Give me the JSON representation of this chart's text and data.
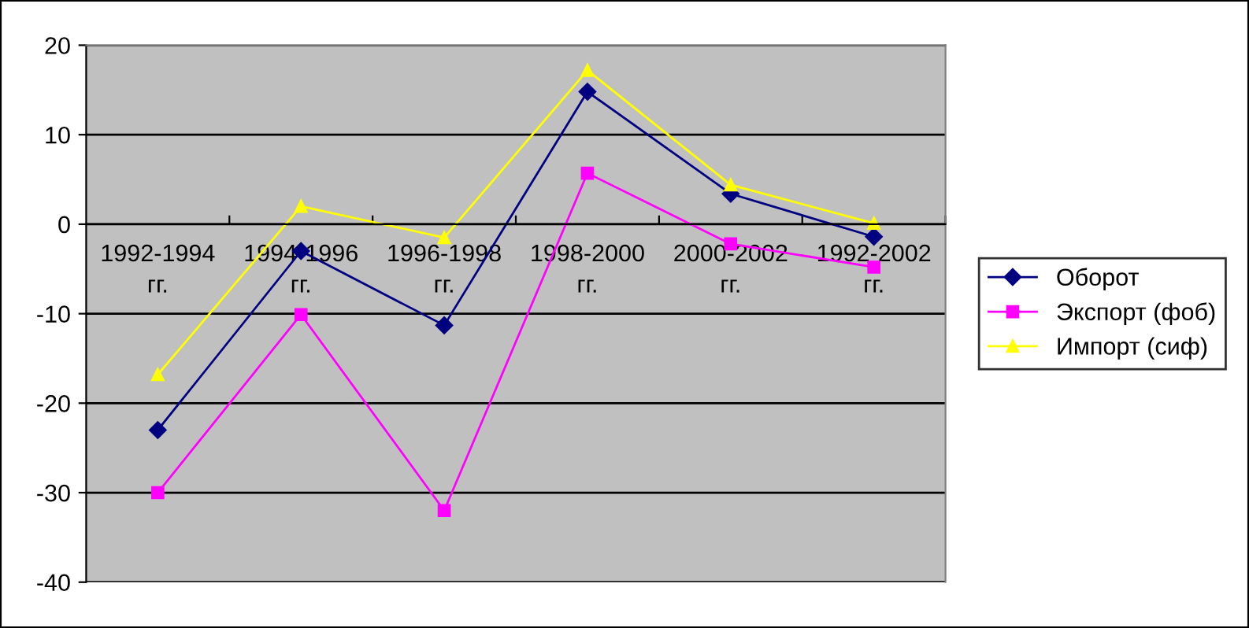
{
  "chart_data": {
    "type": "line",
    "categories": [
      "1992-1994\nгг.",
      "1994-1996\nгг.",
      "1996-1998\nгг.",
      "1998-2000\nгг.",
      "2000-2002\nгг.",
      "1992-2002\nгг."
    ],
    "series": [
      {
        "name": "Оборот",
        "color": "#000080",
        "marker": "diamond",
        "values": [
          -23,
          -3,
          -11.3,
          14.8,
          3.4,
          -1.4
        ]
      },
      {
        "name": "Экспорт (фоб)",
        "color": "#ff00ff",
        "marker": "square",
        "values": [
          -30,
          -10.1,
          -32,
          5.7,
          -2.2,
          -4.8
        ]
      },
      {
        "name": "Импорт (сиф)",
        "color": "#ffff00",
        "marker": "triangle",
        "values": [
          -16.8,
          2.0,
          -1.5,
          17.2,
          4.4,
          0.1
        ]
      }
    ],
    "ylim": [
      -40,
      20
    ],
    "yticks": [
      -40,
      -30,
      -20,
      -10,
      0,
      10,
      20
    ],
    "grid": "y",
    "legend": "right",
    "line_style": "solid"
  }
}
